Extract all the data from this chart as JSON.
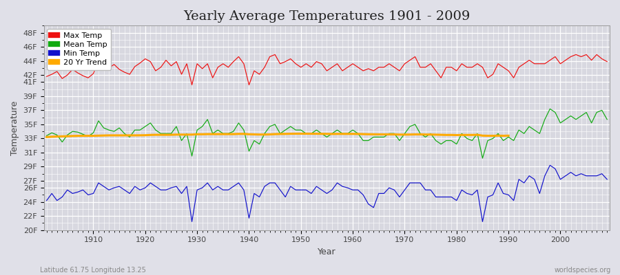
{
  "title": "Yearly Average Temperatures 1901 - 2009",
  "xlabel": "Year",
  "ylabel": "Temperature",
  "footnote_left": "Latitude 61.75 Longitude 13.25",
  "footnote_right": "worldspecies.org",
  "years": [
    1901,
    1902,
    1903,
    1904,
    1905,
    1906,
    1907,
    1908,
    1909,
    1910,
    1911,
    1912,
    1913,
    1914,
    1915,
    1916,
    1917,
    1918,
    1919,
    1920,
    1921,
    1922,
    1923,
    1924,
    1925,
    1926,
    1927,
    1928,
    1929,
    1930,
    1931,
    1932,
    1933,
    1934,
    1935,
    1936,
    1937,
    1938,
    1939,
    1940,
    1941,
    1942,
    1943,
    1944,
    1945,
    1946,
    1947,
    1948,
    1949,
    1950,
    1951,
    1952,
    1953,
    1954,
    1955,
    1956,
    1957,
    1958,
    1959,
    1960,
    1961,
    1962,
    1963,
    1964,
    1965,
    1966,
    1967,
    1968,
    1969,
    1970,
    1971,
    1972,
    1973,
    1974,
    1975,
    1976,
    1977,
    1978,
    1979,
    1980,
    1981,
    1982,
    1983,
    1984,
    1985,
    1986,
    1987,
    1988,
    1989,
    1990,
    1991,
    1992,
    1993,
    1994,
    1995,
    1996,
    1997,
    1998,
    1999,
    2000,
    2001,
    2002,
    2003,
    2004,
    2005,
    2006,
    2007,
    2008,
    2009
  ],
  "max_temp": [
    41.8,
    42.1,
    42.5,
    41.5,
    42.0,
    42.8,
    42.3,
    41.9,
    41.6,
    42.2,
    44.1,
    43.2,
    43.0,
    43.5,
    42.8,
    42.4,
    42.1,
    43.2,
    43.7,
    44.3,
    43.9,
    42.6,
    43.1,
    44.1,
    43.3,
    43.9,
    42.1,
    43.6,
    40.6,
    43.6,
    42.9,
    43.6,
    41.6,
    43.1,
    43.6,
    43.1,
    43.9,
    44.6,
    43.6,
    40.6,
    42.6,
    42.1,
    43.1,
    44.6,
    44.9,
    43.6,
    43.9,
    44.3,
    43.6,
    43.1,
    43.6,
    43.1,
    43.9,
    43.6,
    42.6,
    43.1,
    43.6,
    42.6,
    43.1,
    43.6,
    43.1,
    42.6,
    42.9,
    42.6,
    43.1,
    43.1,
    43.6,
    43.1,
    42.6,
    43.6,
    44.1,
    44.6,
    43.1,
    43.1,
    43.6,
    42.6,
    41.6,
    43.1,
    43.1,
    42.6,
    43.6,
    43.1,
    43.1,
    43.6,
    43.1,
    41.6,
    42.1,
    43.6,
    43.1,
    42.6,
    41.6,
    43.1,
    43.6,
    44.1,
    43.6,
    43.6,
    43.6,
    44.1,
    44.6,
    43.6,
    44.1,
    44.6,
    44.9,
    44.6,
    44.9,
    44.1,
    44.9,
    44.3,
    43.9
  ],
  "mean_temp": [
    33.4,
    33.8,
    33.5,
    32.5,
    33.5,
    34.0,
    33.9,
    33.6,
    33.3,
    33.8,
    35.5,
    34.5,
    34.2,
    34.0,
    34.5,
    33.7,
    33.2,
    34.2,
    34.2,
    34.7,
    35.2,
    34.2,
    33.7,
    33.7,
    33.7,
    34.7,
    32.7,
    33.7,
    30.5,
    34.2,
    34.7,
    35.7,
    33.7,
    34.2,
    33.7,
    33.7,
    34.0,
    35.2,
    34.2,
    31.2,
    32.7,
    32.2,
    33.7,
    34.7,
    35.0,
    33.7,
    34.2,
    34.7,
    34.2,
    34.2,
    33.7,
    33.7,
    34.2,
    33.7,
    33.2,
    33.7,
    34.2,
    33.7,
    33.7,
    34.2,
    33.7,
    32.7,
    32.7,
    33.2,
    33.2,
    33.2,
    33.7,
    33.7,
    32.7,
    33.7,
    34.7,
    35.0,
    33.7,
    33.2,
    33.7,
    32.7,
    32.2,
    32.7,
    32.7,
    32.2,
    33.7,
    33.0,
    32.7,
    33.7,
    30.2,
    32.7,
    33.0,
    33.7,
    32.7,
    33.2,
    32.7,
    34.2,
    33.7,
    34.7,
    34.2,
    33.7,
    35.7,
    37.2,
    36.7,
    35.2,
    35.7,
    36.2,
    35.7,
    36.2,
    36.7,
    35.2,
    36.7,
    37.0,
    35.7
  ],
  "min_temp": [
    24.2,
    25.2,
    24.2,
    24.7,
    25.7,
    25.2,
    25.4,
    25.7,
    25.0,
    25.2,
    26.7,
    26.2,
    25.7,
    26.0,
    26.2,
    25.7,
    25.2,
    26.2,
    25.7,
    26.0,
    26.7,
    26.2,
    25.7,
    25.7,
    26.0,
    26.2,
    25.2,
    26.2,
    21.2,
    25.7,
    26.0,
    26.7,
    25.7,
    26.2,
    25.7,
    25.7,
    26.2,
    26.7,
    25.7,
    21.7,
    25.2,
    24.7,
    26.2,
    26.7,
    26.7,
    25.7,
    24.7,
    26.2,
    25.7,
    25.7,
    25.7,
    25.2,
    26.2,
    25.7,
    25.2,
    25.7,
    26.7,
    26.2,
    26.0,
    25.7,
    25.7,
    25.0,
    23.7,
    23.2,
    25.2,
    25.2,
    26.0,
    25.7,
    24.7,
    25.7,
    26.7,
    26.7,
    26.7,
    25.7,
    25.7,
    24.7,
    24.7,
    24.7,
    24.7,
    24.2,
    25.7,
    25.2,
    25.0,
    25.7,
    21.2,
    24.7,
    25.0,
    26.7,
    25.2,
    25.0,
    24.2,
    27.2,
    26.7,
    27.7,
    27.2,
    25.2,
    27.7,
    29.2,
    28.7,
    27.2,
    27.7,
    28.2,
    27.7,
    28.0,
    27.7,
    27.7,
    27.7,
    28.0,
    27.2
  ],
  "trend_temp": [
    33.2,
    33.25,
    33.28,
    33.3,
    33.32,
    33.35,
    33.37,
    33.38,
    33.38,
    33.38,
    33.4,
    33.42,
    33.44,
    33.44,
    33.44,
    33.44,
    33.44,
    33.44,
    33.45,
    33.46,
    33.5,
    33.52,
    33.52,
    33.52,
    33.52,
    33.55,
    33.55,
    33.55,
    33.55,
    33.6,
    33.6,
    33.62,
    33.62,
    33.62,
    33.62,
    33.62,
    33.62,
    33.65,
    33.65,
    33.6,
    33.58,
    33.56,
    33.56,
    33.58,
    33.62,
    33.64,
    33.65,
    33.67,
    33.68,
    33.68,
    33.68,
    33.67,
    33.67,
    33.66,
    33.65,
    33.64,
    33.65,
    33.65,
    33.65,
    33.65,
    33.64,
    33.62,
    33.6,
    33.59,
    33.58,
    33.58,
    33.58,
    33.58,
    33.55,
    33.55,
    33.56,
    33.58,
    33.58,
    33.56,
    33.56,
    33.54,
    33.52,
    33.5,
    33.5,
    33.48,
    33.5,
    33.5,
    33.5,
    33.52,
    33.4,
    33.38,
    33.38,
    33.4,
    33.38,
    33.4,
    null,
    null,
    null,
    null,
    null,
    null,
    null,
    null,
    null,
    null,
    null,
    null,
    null,
    null,
    null,
    null,
    null,
    null,
    null
  ],
  "max_color": "#ee1111",
  "mean_color": "#11aa11",
  "min_color": "#1111cc",
  "trend_color": "#ffaa00",
  "bg_color": "#e0e0e8",
  "plot_bg_color": "#d8d8e0",
  "grid_color": "#ffffff",
  "ylim_min": 20,
  "ylim_max": 49,
  "yticks": [
    20,
    22,
    24,
    26,
    27,
    29,
    31,
    33,
    35,
    37,
    39,
    41,
    42,
    44,
    46,
    48
  ],
  "ytick_labels": [
    "20F",
    "22F",
    "24F",
    "26F",
    "27F",
    "29F",
    "31F",
    "33F",
    "35F",
    "37F",
    "39F",
    "41F",
    "42F",
    "44F",
    "46F",
    "48F"
  ],
  "title_fontsize": 14,
  "axis_label_fontsize": 9,
  "tick_fontsize": 8,
  "legend_fontsize": 8
}
